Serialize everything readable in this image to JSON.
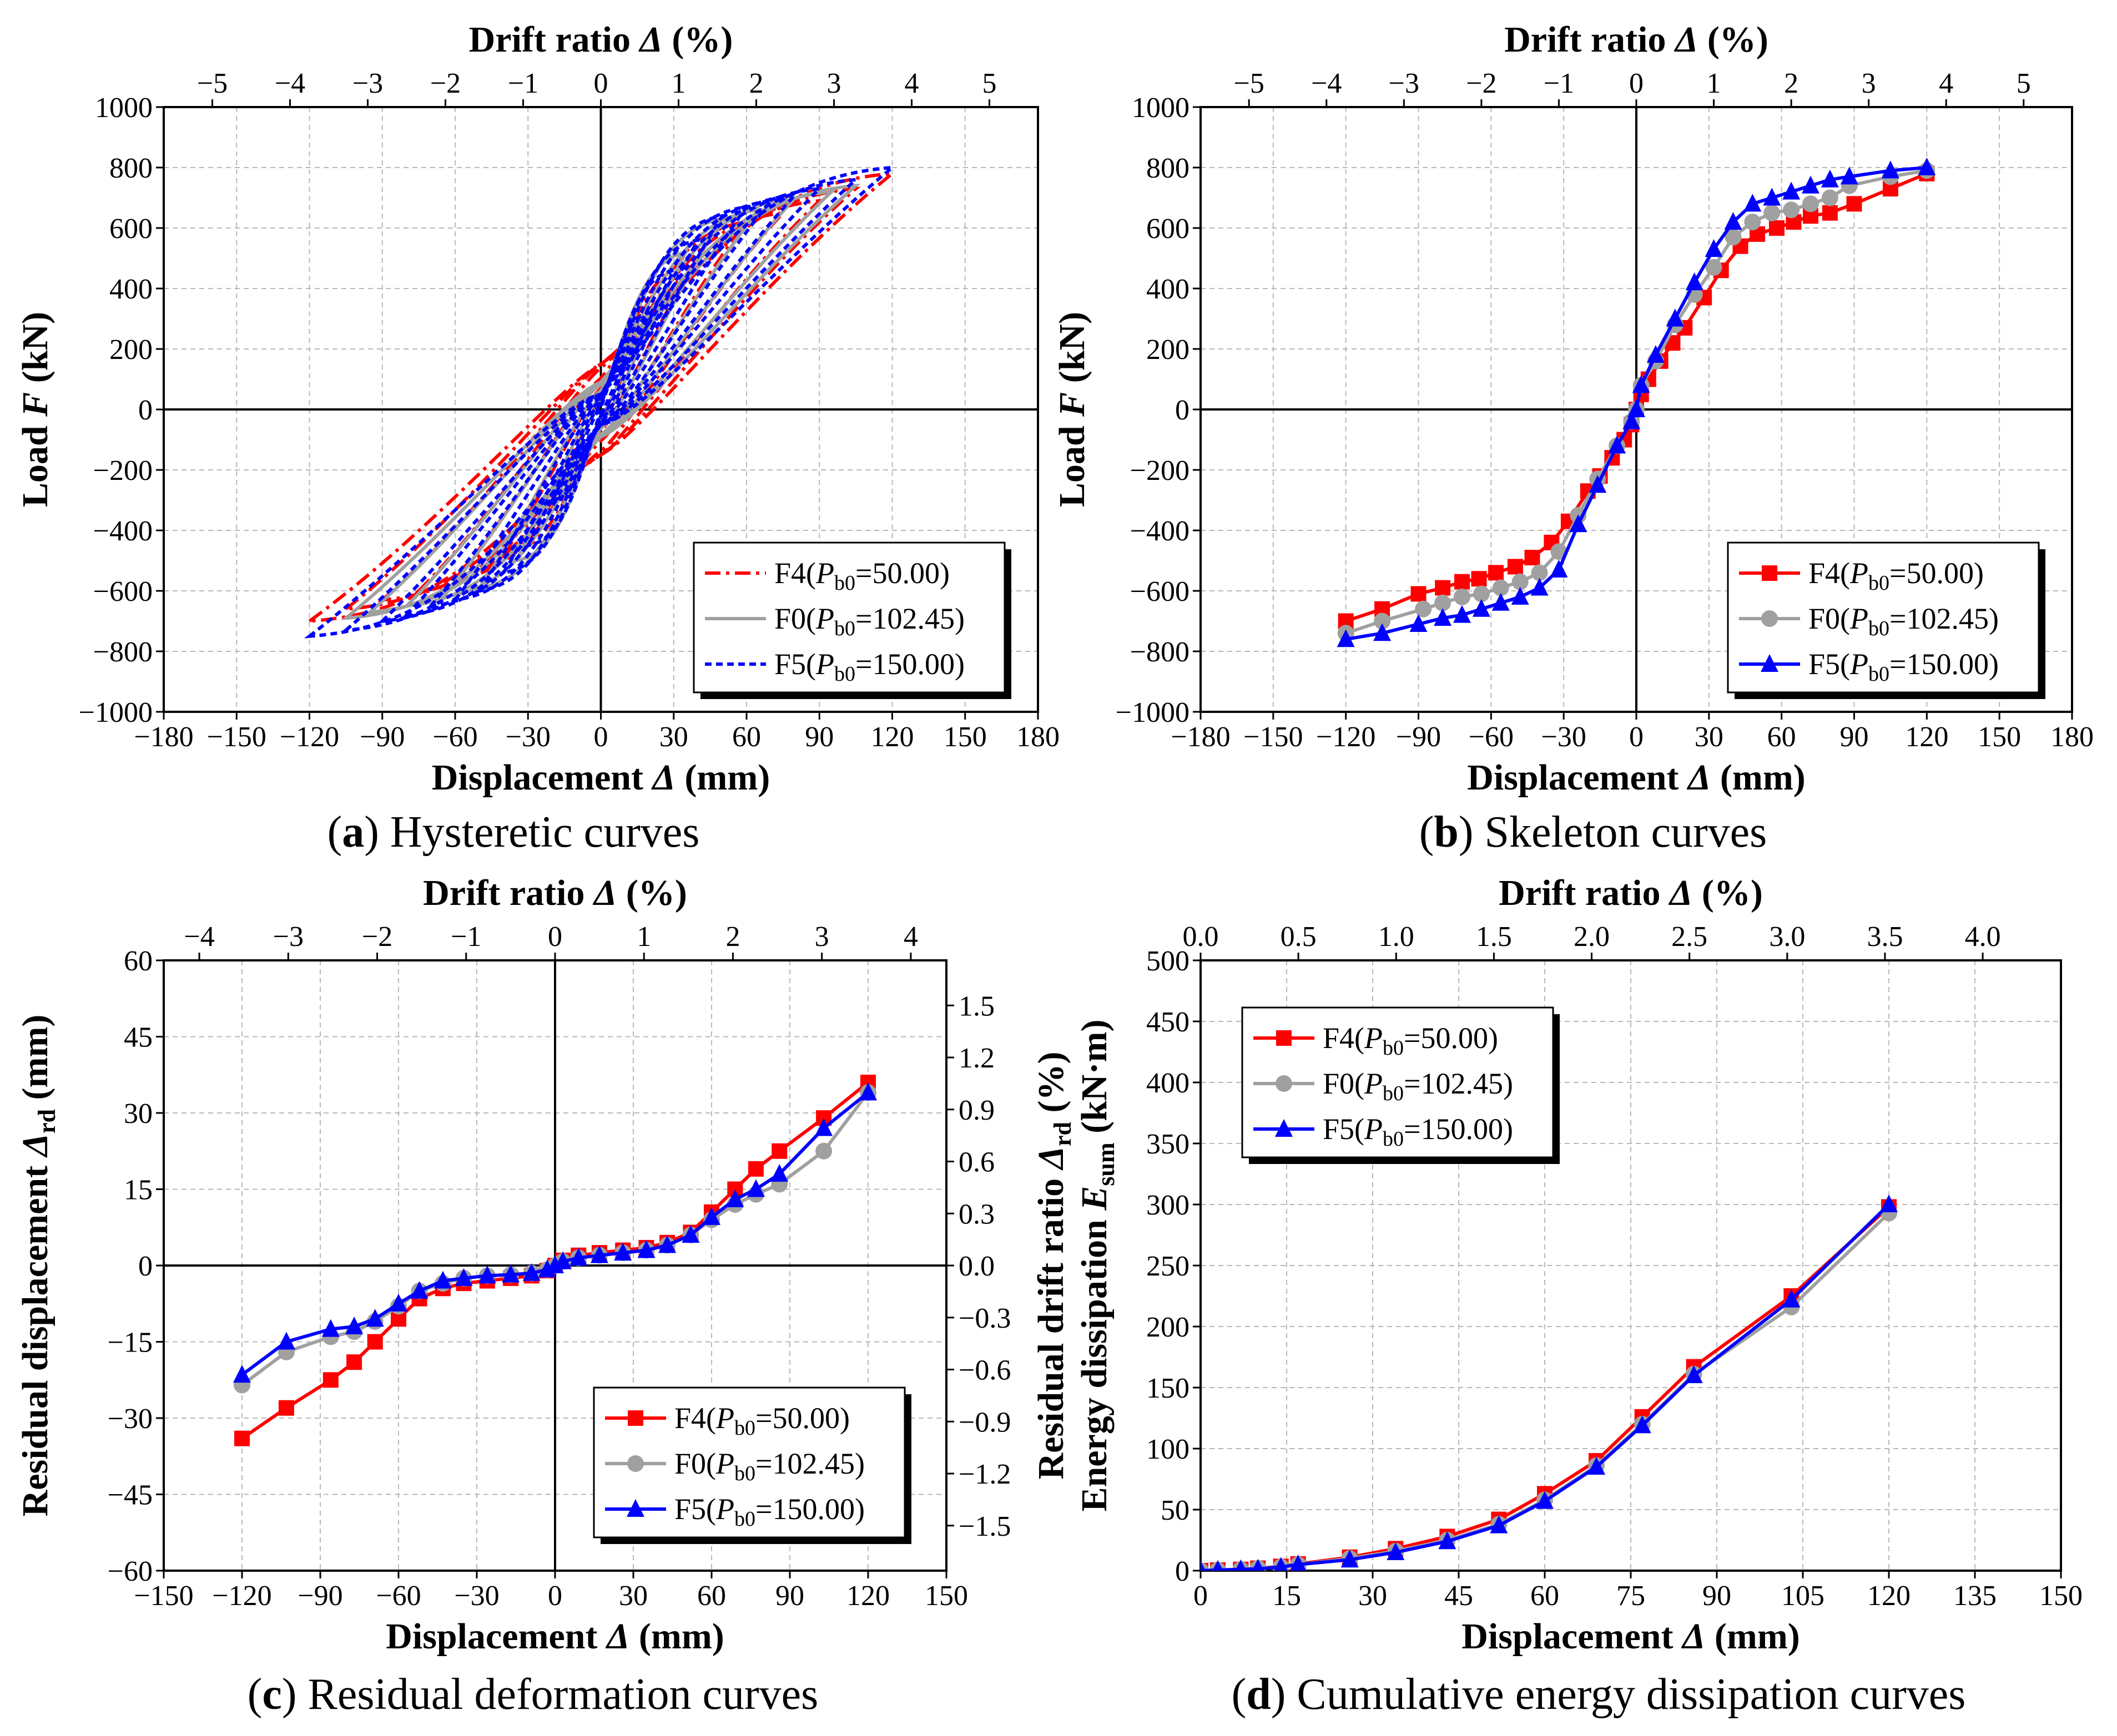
{
  "figure": {
    "colors": {
      "F4": "#ff0000",
      "F0": "#a0a0a0",
      "F5": "#0000ff"
    },
    "legend_entries": [
      {
        "id": "F4",
        "pre": "F4(",
        "sym": "P",
        "sub": "b0",
        "post": "=50.00)"
      },
      {
        "id": "F0",
        "pre": "F0(",
        "sym": "P",
        "sub": "b0",
        "post": "=102.45)"
      },
      {
        "id": "F5",
        "pre": "F5(",
        "sym": "P",
        "sub": "b0",
        "post": "=150.00)"
      }
    ]
  },
  "chart_data": [
    {
      "id": "a",
      "type": "line",
      "caption": {
        "label": "a",
        "text": " Hysteretic curves"
      },
      "xlabel": {
        "pre": "Displacement ",
        "sym": "Δ",
        "post": " (mm)"
      },
      "ylabel": {
        "pre": "Load ",
        "sym": "F",
        "post": " (kN)"
      },
      "x2label": {
        "pre": "Drift ratio ",
        "sym": "Δ",
        "post": " (%)"
      },
      "xlim": [
        -180,
        180
      ],
      "ylim": [
        -1000,
        1000
      ],
      "x2lim": [
        -5.625,
        5.625
      ],
      "xticks": [
        -180,
        -150,
        -120,
        -90,
        -60,
        -30,
        0,
        30,
        60,
        90,
        120,
        150,
        180
      ],
      "yticks": [
        -1000,
        -800,
        -600,
        -400,
        -200,
        0,
        200,
        400,
        600,
        800,
        1000
      ],
      "x2ticks": [
        -5,
        -4,
        -3,
        -2,
        -1,
        0,
        1,
        2,
        3,
        4,
        5
      ],
      "grid": true,
      "legend_position": "bottom-right",
      "hysteresis": {
        "F4": {
          "amplitudes": [
            20,
            40,
            60,
            75,
            90,
            105,
            120
          ],
          "peak_pos": [
            300,
            500,
            620,
            650,
            690,
            730,
            780
          ],
          "peak_neg": [
            -290,
            -480,
            -560,
            -600,
            -630,
            -660,
            -700
          ],
          "intercept": 150
        },
        "F0": {
          "amplitudes": [
            20,
            35,
            50,
            65,
            80,
            95,
            105
          ],
          "peak_pos": [
            310,
            520,
            630,
            660,
            700,
            720,
            740
          ],
          "peak_neg": [
            -300,
            -500,
            -590,
            -620,
            -650,
            -670,
            -690
          ],
          "intercept": 90
        },
        "F5": {
          "amplitudes": [
            10,
            20,
            30,
            40,
            50,
            60,
            70,
            80,
            90,
            105,
            120
          ],
          "peak_pos": [
            150,
            320,
            460,
            560,
            640,
            670,
            690,
            710,
            730,
            760,
            800
          ],
          "peak_neg": [
            -150,
            -300,
            -450,
            -540,
            -600,
            -630,
            -650,
            -680,
            -700,
            -730,
            -750
          ],
          "intercept": 50
        }
      }
    },
    {
      "id": "b",
      "type": "line",
      "caption": {
        "label": "b",
        "text": " Skeleton curves"
      },
      "xlabel": {
        "pre": "Displacement ",
        "sym": "Δ",
        "post": " (mm)"
      },
      "ylabel": {
        "pre": "Load ",
        "sym": "F",
        "post": " (kN)"
      },
      "x2label": {
        "pre": "Drift ratio ",
        "sym": "Δ",
        "post": " (%)"
      },
      "xlim": [
        -180,
        180
      ],
      "ylim": [
        -1000,
        1000
      ],
      "x2lim": [
        -5.625,
        5.625
      ],
      "xticks": [
        -180,
        -150,
        -120,
        -90,
        -60,
        -30,
        0,
        30,
        60,
        90,
        120,
        150,
        180
      ],
      "yticks": [
        -1000,
        -800,
        -600,
        -400,
        -200,
        0,
        200,
        400,
        600,
        800,
        1000
      ],
      "x2ticks": [
        -5,
        -4,
        -3,
        -2,
        -1,
        0,
        1,
        2,
        3,
        4,
        5
      ],
      "grid": true,
      "legend_position": "bottom-right",
      "series": [
        {
          "name": "F4",
          "marker": "square",
          "x": [
            -120,
            -105,
            -90,
            -80,
            -72,
            -65,
            -58,
            -50,
            -43,
            -35,
            -28,
            -20,
            -15,
            -10,
            -5,
            -2,
            0,
            2,
            5,
            10,
            15,
            20,
            28,
            35,
            43,
            50,
            58,
            65,
            72,
            80,
            90,
            105,
            120
          ],
          "y": [
            -700,
            -660,
            -610,
            -590,
            -570,
            -560,
            -540,
            -520,
            -490,
            -440,
            -370,
            -270,
            -220,
            -160,
            -100,
            -50,
            0,
            50,
            100,
            160,
            220,
            270,
            370,
            460,
            540,
            580,
            600,
            620,
            640,
            650,
            680,
            730,
            780
          ]
        },
        {
          "name": "F0",
          "marker": "circle",
          "x": [
            -120,
            -105,
            -88,
            -80,
            -72,
            -64,
            -56,
            -48,
            -40,
            -32,
            -24,
            -16,
            -8,
            -2,
            0,
            2,
            8,
            16,
            24,
            32,
            40,
            48,
            56,
            64,
            72,
            80,
            88,
            105,
            120
          ],
          "y": [
            -740,
            -700,
            -660,
            -640,
            -620,
            -610,
            -590,
            -570,
            -540,
            -470,
            -350,
            -230,
            -120,
            -40,
            0,
            80,
            160,
            280,
            380,
            470,
            570,
            620,
            650,
            660,
            680,
            700,
            740,
            770,
            790
          ]
        },
        {
          "name": "F5",
          "marker": "triangle",
          "x": [
            -120,
            -105,
            -90,
            -80,
            -72,
            -64,
            -56,
            -48,
            -40,
            -32,
            -24,
            -16,
            -8,
            -2,
            0,
            2,
            8,
            16,
            24,
            32,
            40,
            48,
            56,
            64,
            72,
            80,
            88,
            105,
            120
          ],
          "y": [
            -760,
            -740,
            -710,
            -690,
            -680,
            -660,
            -640,
            -620,
            -590,
            -530,
            -380,
            -250,
            -120,
            -40,
            0,
            80,
            180,
            300,
            420,
            530,
            620,
            680,
            700,
            720,
            740,
            760,
            770,
            790,
            800
          ]
        }
      ]
    },
    {
      "id": "c",
      "type": "line",
      "caption": {
        "label": "c",
        "text": " Residual deformation curves"
      },
      "xlabel": {
        "pre": "Displacement ",
        "sym": "Δ",
        "post": " (mm)"
      },
      "ylabel": {
        "pre": "Residual displacement ",
        "sym": "Δ",
        "sub": "rd",
        "post": " (mm)"
      },
      "y2label": {
        "pre": "Residual drift ratio ",
        "sym": "Δ",
        "sub": "rd",
        "post": " (%)"
      },
      "x2label": {
        "pre": "Drift ratio ",
        "sym": "Δ",
        "post": " (%)"
      },
      "xlim": [
        -150,
        150
      ],
      "ylim": [
        -60,
        60
      ],
      "x2lim": [
        -4.4,
        4.4
      ],
      "y2lim": [
        -1.76,
        1.76
      ],
      "xticks": [
        -150,
        -120,
        -90,
        -60,
        -30,
        0,
        30,
        60,
        90,
        120,
        150
      ],
      "yticks": [
        -60,
        -45,
        -30,
        -15,
        0,
        15,
        30,
        45,
        60
      ],
      "x2ticks": [
        -4,
        -3,
        -2,
        -1,
        0,
        1,
        2,
        3,
        4
      ],
      "y2ticks": [
        "-1.5",
        "-1.2",
        "-0.9",
        "-0.6",
        "-0.3",
        "0.0",
        "0.3",
        "0.6",
        "0.9",
        "1.2",
        "1.5"
      ],
      "grid": true,
      "legend_position": "bottom-right",
      "series": [
        {
          "name": "F4",
          "marker": "square",
          "x": [
            -120,
            -103,
            -86,
            -77,
            -69,
            -60,
            -52,
            -43,
            -35,
            -26,
            -17,
            -9,
            -3,
            0,
            3,
            9,
            17,
            26,
            35,
            43,
            52,
            60,
            69,
            77,
            86,
            103,
            120
          ],
          "y": [
            -34,
            -28,
            -22.5,
            -19,
            -15,
            -10.5,
            -6.5,
            -4.5,
            -3.5,
            -3,
            -2.5,
            -2,
            -1,
            0,
            1,
            2,
            2.5,
            3,
            3.5,
            4.5,
            6.5,
            10.5,
            15,
            19,
            22.5,
            29,
            36
          ]
        },
        {
          "name": "F0",
          "marker": "circle",
          "x": [
            -120,
            -103,
            -86,
            -77,
            -69,
            -60,
            -52,
            -43,
            -35,
            -26,
            -17,
            -9,
            -3,
            0,
            3,
            9,
            17,
            26,
            35,
            43,
            52,
            60,
            69,
            77,
            86,
            103,
            120
          ],
          "y": [
            -23.5,
            -17,
            -14,
            -13,
            -11,
            -8,
            -5,
            -3.5,
            -2.5,
            -2,
            -1.8,
            -1.5,
            -0.8,
            0,
            0.8,
            1.5,
            2,
            2.5,
            3,
            4,
            6,
            9,
            12,
            14,
            16,
            22.5,
            34
          ]
        },
        {
          "name": "F5",
          "marker": "triangle",
          "x": [
            -120,
            -103,
            -86,
            -77,
            -69,
            -60,
            -52,
            -43,
            -35,
            -26,
            -17,
            -9,
            -3,
            0,
            3,
            9,
            17,
            26,
            35,
            43,
            52,
            60,
            69,
            77,
            86,
            103,
            120
          ],
          "y": [
            -21.5,
            -15,
            -12.5,
            -12,
            -10.5,
            -7.5,
            -5,
            -3,
            -2.5,
            -2,
            -1.8,
            -1.5,
            -0.8,
            0,
            0.8,
            1.5,
            2,
            2.5,
            3,
            4,
            6,
            9.5,
            13,
            15,
            18,
            27,
            34
          ]
        }
      ]
    },
    {
      "id": "d",
      "type": "line",
      "caption": {
        "label": "d",
        "text": " Cumulative energy dissipation curves"
      },
      "xlabel": {
        "pre": "Displacement ",
        "sym": "Δ",
        "post": " (mm)"
      },
      "ylabel": {
        "pre": "Energy dissipation ",
        "sym": "E",
        "sub": "sum",
        "post": " (kN·m)"
      },
      "x2label": {
        "pre": "Drift ratio ",
        "sym": "Δ",
        "post": " (%)"
      },
      "xlim": [
        0,
        150
      ],
      "ylim": [
        0,
        500
      ],
      "x2lim": [
        0,
        4.4
      ],
      "xticks": [
        0,
        15,
        30,
        45,
        60,
        75,
        90,
        105,
        120,
        135,
        150
      ],
      "yticks": [
        0,
        50,
        100,
        150,
        200,
        250,
        300,
        350,
        400,
        450,
        500
      ],
      "x2ticks": [
        "0.0",
        "0.5",
        "1.0",
        "1.5",
        "2.0",
        "2.5",
        "3.0",
        "3.5",
        "4.0"
      ],
      "grid": true,
      "legend_position": "top-left",
      "series": [
        {
          "name": "F4",
          "marker": "square",
          "x": [
            0,
            3,
            7,
            10,
            14,
            17,
            26,
            34,
            43,
            52,
            60,
            69,
            77,
            86,
            103,
            120
          ],
          "y": [
            0,
            0.5,
            1,
            2,
            3.5,
            5.5,
            11,
            18,
            28,
            42,
            63,
            90,
            126,
            167,
            225,
            298
          ]
        },
        {
          "name": "F0",
          "marker": "circle",
          "x": [
            0,
            3,
            7,
            10,
            14,
            17,
            26,
            34,
            43,
            52,
            60,
            69,
            77,
            86,
            103,
            120
          ],
          "y": [
            0,
            0.5,
            1,
            2,
            3,
            5,
            10,
            16,
            25,
            38,
            58,
            86,
            120,
            161,
            216,
            293
          ]
        },
        {
          "name": "F5",
          "marker": "triangle",
          "x": [
            0,
            3,
            7,
            10,
            14,
            17,
            26,
            34,
            43,
            52,
            60,
            69,
            77,
            86,
            103,
            120
          ],
          "y": [
            0,
            0.5,
            1,
            1.5,
            3,
            5,
            9,
            15,
            24,
            37,
            57,
            85,
            119,
            160,
            222,
            300
          ]
        }
      ]
    }
  ]
}
